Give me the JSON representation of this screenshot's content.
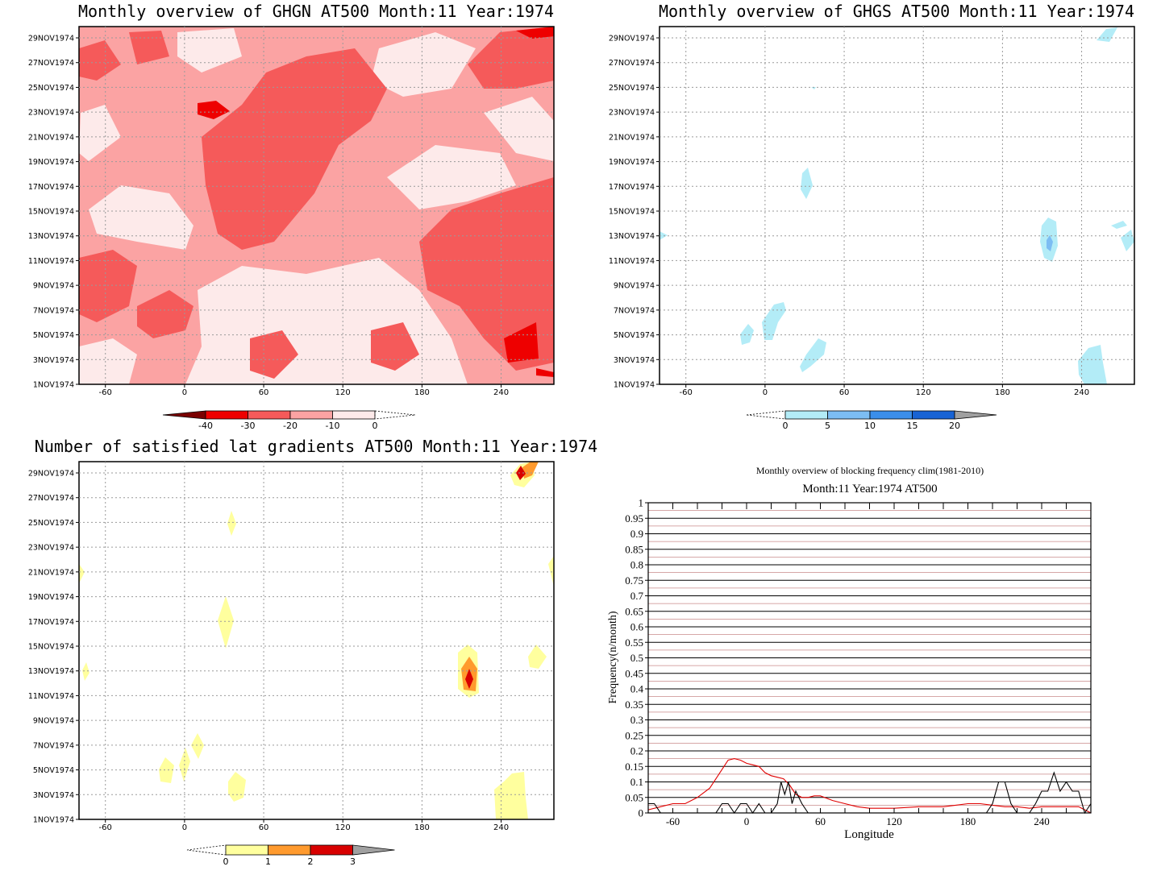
{
  "panels": {
    "ghgn": {
      "title": "Monthly overview of GHGN AT500 Month:11 Year:1974",
      "colorbar": {
        "labels": [
          "-40",
          "-30",
          "-20",
          "-10",
          "0"
        ],
        "colors": [
          "#7a0000",
          "#ee0000",
          "#f55a5a",
          "#fba3a3",
          "#fdeaea"
        ]
      }
    },
    "ghgs": {
      "title": "Monthly overview of GHGS AT500 Month:11 Year:1974",
      "colorbar": {
        "labels": [
          "0",
          "5",
          "10",
          "15",
          "20"
        ],
        "colors": [
          "#b3ecf7",
          "#7cbdf3",
          "#3b8eea",
          "#1863d4",
          "#a0a0a0"
        ]
      }
    },
    "gradients": {
      "title": "Number of satisfied lat gradients AT500 Month:11 Year:1974",
      "colorbar": {
        "labels": [
          "0",
          "1",
          "2",
          "3"
        ],
        "colors": [
          "#ffff9e",
          "#ff9a2e",
          "#d80000",
          "#a0a0a0"
        ]
      }
    },
    "frequency": {
      "title": "Monthly overview of blocking frequency clim(1981-2010)",
      "subtitle": "Month:11 Year:1974  AT500"
    }
  },
  "shared_axes": {
    "date_ticks": [
      "1NOV1974",
      "3NOV1974",
      "5NOV1974",
      "7NOV1974",
      "9NOV1974",
      "11NOV1974",
      "13NOV1974",
      "15NOV1974",
      "17NOV1974",
      "19NOV1974",
      "21NOV1974",
      "23NOV1974",
      "25NOV1974",
      "27NOV1974",
      "29NOV1974"
    ],
    "lon_ticks": [
      "-60",
      "0",
      "60",
      "120",
      "180",
      "240"
    ]
  },
  "chart_data": [
    {
      "type": "heatmap",
      "title": "Monthly overview of GHGN AT500 Month:11 Year:1974",
      "x_ticks": [
        -60,
        0,
        60,
        120,
        180,
        240
      ],
      "xlim": [
        -80,
        280
      ],
      "y_ticks": [
        "1NOV1974",
        "3NOV1974",
        "5NOV1974",
        "7NOV1974",
        "9NOV1974",
        "11NOV1974",
        "13NOV1974",
        "15NOV1974",
        "17NOV1974",
        "19NOV1974",
        "21NOV1974",
        "23NOV1974",
        "25NOV1974",
        "27NOV1974",
        "29NOV1974"
      ],
      "levels": [
        -40,
        -30,
        -20,
        -10,
        0
      ],
      "colors": [
        "#7a0000",
        "#ee0000",
        "#f55a5a",
        "#fba3a3",
        "#fdeaea"
      ]
    },
    {
      "type": "heatmap",
      "title": "Monthly overview of GHGS AT500 Month:11 Year:1974",
      "x_ticks": [
        -60,
        0,
        60,
        120,
        180,
        240
      ],
      "xlim": [
        -80,
        280
      ],
      "y_ticks": [
        "1NOV1974",
        "3NOV1974",
        "5NOV1974",
        "7NOV1974",
        "9NOV1974",
        "11NOV1974",
        "13NOV1974",
        "15NOV1974",
        "17NOV1974",
        "19NOV1974",
        "21NOV1974",
        "23NOV1974",
        "25NOV1974",
        "27NOV1974",
        "29NOV1974"
      ],
      "levels": [
        0,
        5,
        10,
        15,
        20
      ],
      "colors": [
        "#b3ecf7",
        "#7cbdf3",
        "#3b8eea",
        "#1863d4",
        "#a0a0a0"
      ]
    },
    {
      "type": "heatmap",
      "title": "Number of satisfied lat gradients AT500 Month:11 Year:1974",
      "x_ticks": [
        -60,
        0,
        60,
        120,
        180,
        240
      ],
      "xlim": [
        -80,
        280
      ],
      "y_ticks": [
        "1NOV1974",
        "3NOV1974",
        "5NOV1974",
        "7NOV1974",
        "9NOV1974",
        "11NOV1974",
        "13NOV1974",
        "15NOV1974",
        "17NOV1974",
        "19NOV1974",
        "21NOV1974",
        "23NOV1974",
        "25NOV1974",
        "27NOV1974",
        "29NOV1974"
      ],
      "levels": [
        0,
        1,
        2,
        3
      ],
      "colors": [
        "#ffff9e",
        "#ff9a2e",
        "#d80000",
        "#a0a0a0"
      ]
    },
    {
      "type": "line",
      "title": "Monthly overview of blocking frequency clim(1981-2010)",
      "subtitle": "Month:11 Year:1974  AT500",
      "xlabel": "Longitude",
      "ylabel": "Frequency(n/month)",
      "xlim": [
        -80,
        280
      ],
      "ylim": [
        0,
        1
      ],
      "x_ticks": [
        -60,
        0,
        60,
        120,
        180,
        240
      ],
      "y_ticks": [
        "0",
        "0.05",
        "0.1",
        "0.15",
        "0.2",
        "0.25",
        "0.3",
        "0.35",
        "0.4",
        "0.45",
        "0.5",
        "0.55",
        "0.6",
        "0.65",
        "0.7",
        "0.75",
        "0.8",
        "0.85",
        "0.9",
        "0.95",
        "1"
      ],
      "series": [
        {
          "color": "#e00000",
          "x": [
            -80,
            -70,
            -60,
            -50,
            -40,
            -30,
            -20,
            -15,
            -10,
            -5,
            0,
            5,
            10,
            15,
            20,
            25,
            30,
            35,
            40,
            45,
            50,
            55,
            60,
            70,
            80,
            90,
            100,
            110,
            120,
            140,
            160,
            170,
            180,
            190,
            200,
            210,
            220,
            230,
            240,
            250,
            260,
            270,
            275,
            280
          ],
          "y": [
            0.01,
            0.02,
            0.03,
            0.03,
            0.05,
            0.08,
            0.14,
            0.17,
            0.175,
            0.17,
            0.16,
            0.155,
            0.15,
            0.13,
            0.12,
            0.115,
            0.11,
            0.09,
            0.06,
            0.05,
            0.05,
            0.055,
            0.055,
            0.04,
            0.03,
            0.02,
            0.015,
            0.015,
            0.015,
            0.02,
            0.02,
            0.025,
            0.03,
            0.03,
            0.025,
            0.02,
            0.02,
            0.015,
            0.02,
            0.02,
            0.02,
            0.02,
            0.01,
            0.0
          ]
        },
        {
          "color": "#000000",
          "x": [
            -80,
            -75,
            -70,
            -60,
            -40,
            -25,
            -20,
            -15,
            -10,
            -5,
            0,
            5,
            10,
            15,
            20,
            25,
            28,
            31,
            34,
            37,
            40,
            45,
            50,
            100,
            150,
            195,
            200,
            205,
            210,
            215,
            220,
            225,
            230,
            235,
            240,
            245,
            250,
            255,
            260,
            265,
            270,
            275,
            280
          ],
          "y": [
            0.03,
            0.03,
            0.0,
            0.0,
            0.0,
            0.0,
            0.03,
            0.03,
            0.0,
            0.03,
            0.03,
            0.0,
            0.03,
            0.0,
            0.0,
            0.03,
            0.1,
            0.06,
            0.1,
            0.03,
            0.07,
            0.03,
            0.0,
            0.0,
            0.0,
            0.0,
            0.03,
            0.1,
            0.1,
            0.03,
            0.0,
            0.0,
            0.0,
            0.03,
            0.07,
            0.07,
            0.13,
            0.07,
            0.1,
            0.07,
            0.07,
            0.0,
            0.03
          ]
        }
      ]
    }
  ]
}
